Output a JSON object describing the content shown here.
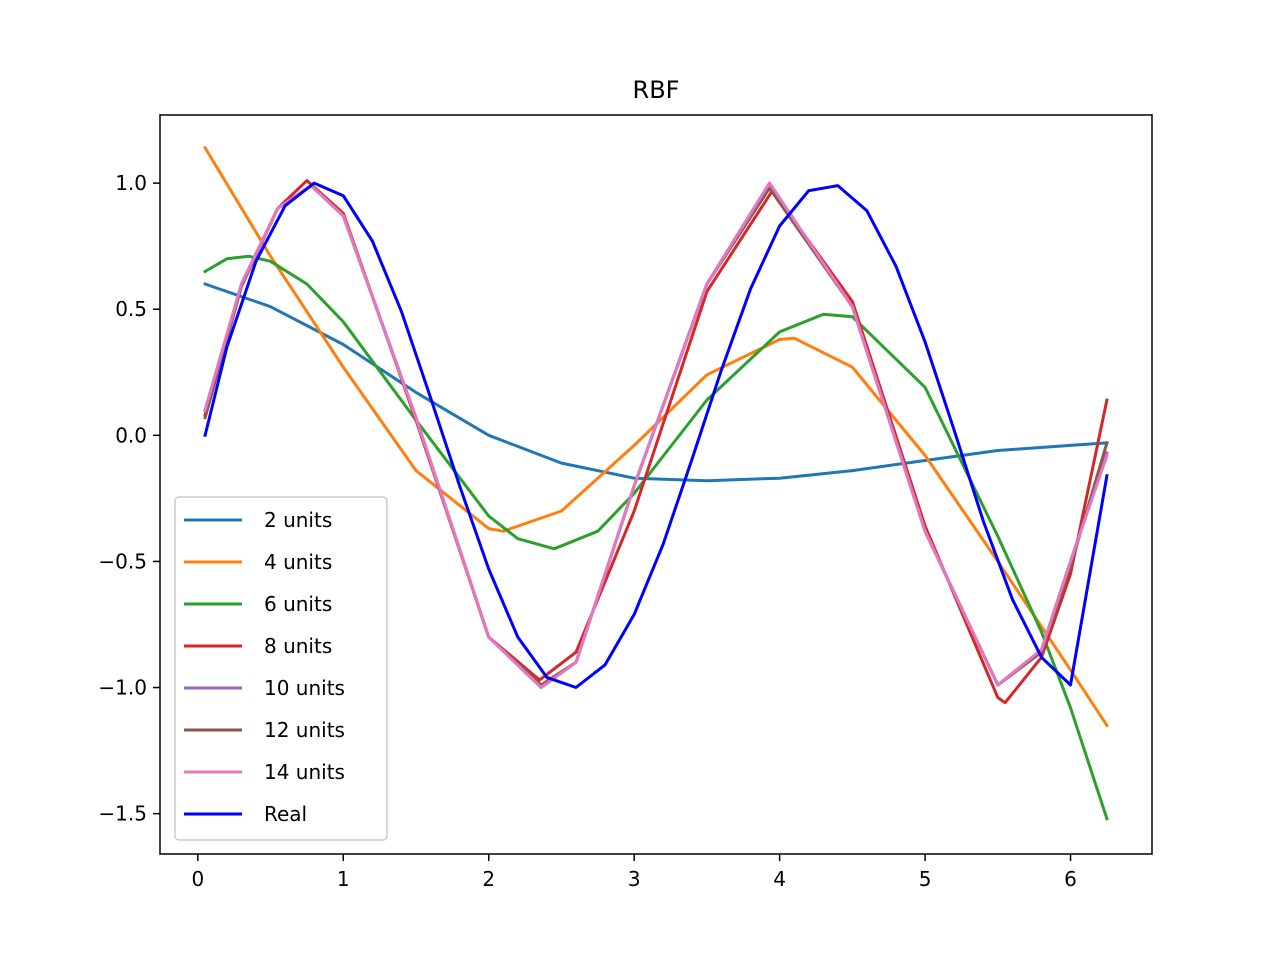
{
  "chart_data": {
    "type": "line",
    "title": "RBF",
    "xlabel": "",
    "ylabel": "",
    "xlim": [
      -0.26,
      6.56
    ],
    "ylim": [
      -1.66,
      1.27
    ],
    "xticks": [
      0,
      1,
      2,
      3,
      4,
      5,
      6
    ],
    "xtick_labels": [
      "0",
      "1",
      "2",
      "3",
      "4",
      "5",
      "6"
    ],
    "yticks": [
      -1.5,
      -1.0,
      -0.5,
      0.0,
      0.5,
      1.0
    ],
    "ytick_labels": [
      "−1.5",
      "−1.0",
      "−0.5",
      "0.0",
      "0.5",
      "1.0"
    ],
    "grid": false,
    "legend_position": "lower-left",
    "series": [
      {
        "name": "2 units",
        "color": "#1f77b4",
        "x": [
          0.05,
          0.5,
          1.0,
          1.5,
          2.0,
          2.5,
          3.0,
          3.5,
          4.0,
          4.5,
          5.0,
          5.5,
          6.0,
          6.25
        ],
        "y": [
          0.6,
          0.51,
          0.36,
          0.17,
          0.0,
          -0.11,
          -0.17,
          -0.18,
          -0.17,
          -0.14,
          -0.1,
          -0.06,
          -0.04,
          -0.03
        ]
      },
      {
        "name": "4 units",
        "color": "#ff7f0e",
        "x": [
          0.05,
          0.5,
          1.0,
          1.5,
          2.0,
          2.1,
          2.5,
          3.0,
          3.5,
          4.0,
          4.1,
          4.5,
          5.0,
          5.5,
          6.0,
          6.25
        ],
        "y": [
          1.14,
          0.71,
          0.27,
          -0.14,
          -0.37,
          -0.38,
          -0.3,
          -0.04,
          0.24,
          0.38,
          0.385,
          0.27,
          -0.08,
          -0.5,
          -0.93,
          -1.15
        ]
      },
      {
        "name": "6 units",
        "color": "#2ca02c",
        "x": [
          0.05,
          0.2,
          0.35,
          0.5,
          0.75,
          1.0,
          1.5,
          2.0,
          2.2,
          2.45,
          2.75,
          3.0,
          3.5,
          4.0,
          4.3,
          4.5,
          5.0,
          5.5,
          5.8,
          6.0,
          6.25
        ],
        "y": [
          0.65,
          0.7,
          0.71,
          0.69,
          0.6,
          0.45,
          0.06,
          -0.32,
          -0.41,
          -0.45,
          -0.38,
          -0.23,
          0.14,
          0.41,
          0.48,
          0.47,
          0.19,
          -0.4,
          -0.78,
          -1.08,
          -1.52
        ]
      },
      {
        "name": "8 units",
        "color": "#d62728",
        "x": [
          0.05,
          0.3,
          0.55,
          0.75,
          1.0,
          1.5,
          2.0,
          2.35,
          2.6,
          3.0,
          3.5,
          3.95,
          4.5,
          5.0,
          5.5,
          5.55,
          5.8,
          6.0,
          6.25
        ],
        "y": [
          0.08,
          0.6,
          0.9,
          1.01,
          0.88,
          0.06,
          -0.8,
          -0.97,
          -0.86,
          -0.3,
          0.57,
          0.97,
          0.53,
          -0.36,
          -1.04,
          -1.06,
          -0.88,
          -0.55,
          0.14
        ]
      },
      {
        "name": "10 units",
        "color": "#9467bd",
        "x": [
          0.05,
          0.3,
          0.55,
          0.78,
          1.0,
          1.5,
          2.0,
          2.36,
          2.6,
          3.0,
          3.5,
          3.93,
          4.5,
          5.0,
          5.5,
          5.8,
          6.0,
          6.25
        ],
        "y": [
          0.1,
          0.6,
          0.9,
          0.99,
          0.87,
          0.07,
          -0.8,
          -1.0,
          -0.9,
          -0.2,
          0.6,
          1.0,
          0.51,
          -0.38,
          -0.99,
          -0.85,
          -0.5,
          -0.07
        ]
      },
      {
        "name": "12 units",
        "color": "#8c564b",
        "x": [
          0.05,
          0.3,
          0.55,
          0.78,
          1.0,
          1.5,
          2.0,
          2.36,
          2.6,
          3.0,
          3.5,
          3.93,
          4.5,
          5.0,
          5.5,
          5.8,
          6.0,
          6.25
        ],
        "y": [
          0.07,
          0.59,
          0.9,
          0.99,
          0.87,
          0.07,
          -0.8,
          -0.99,
          -0.9,
          -0.2,
          0.6,
          0.98,
          0.51,
          -0.38,
          -0.99,
          -0.86,
          -0.52,
          -0.03
        ]
      },
      {
        "name": "14 units",
        "color": "#e377c2",
        "x": [
          0.05,
          0.3,
          0.55,
          0.78,
          1.0,
          1.5,
          2.0,
          2.36,
          2.6,
          3.0,
          3.5,
          3.93,
          4.5,
          5.0,
          5.5,
          5.8,
          6.0,
          6.25
        ],
        "y": [
          0.1,
          0.6,
          0.9,
          0.99,
          0.87,
          0.07,
          -0.8,
          -1.0,
          -0.9,
          -0.2,
          0.6,
          1.0,
          0.51,
          -0.38,
          -0.99,
          -0.85,
          -0.5,
          -0.08
        ]
      },
      {
        "name": "Real",
        "color": "#0000ff",
        "x": [
          0.05,
          0.2,
          0.4,
          0.6,
          0.8,
          1.0,
          1.2,
          1.4,
          1.6,
          1.8,
          2.0,
          2.2,
          2.4,
          2.6,
          2.8,
          3.0,
          3.2,
          3.4,
          3.6,
          3.8,
          4.0,
          4.2,
          4.4,
          4.6,
          4.8,
          5.0,
          5.2,
          5.4,
          5.6,
          5.8,
          6.0,
          6.25
        ],
        "y": [
          0.0,
          0.35,
          0.69,
          0.91,
          1.0,
          0.95,
          0.77,
          0.49,
          0.15,
          -0.2,
          -0.53,
          -0.8,
          -0.96,
          -1.0,
          -0.91,
          -0.71,
          -0.43,
          -0.09,
          0.26,
          0.58,
          0.83,
          0.97,
          0.99,
          0.89,
          0.67,
          0.37,
          0.02,
          -0.34,
          -0.65,
          -0.88,
          -0.99,
          -0.16
        ]
      }
    ]
  }
}
